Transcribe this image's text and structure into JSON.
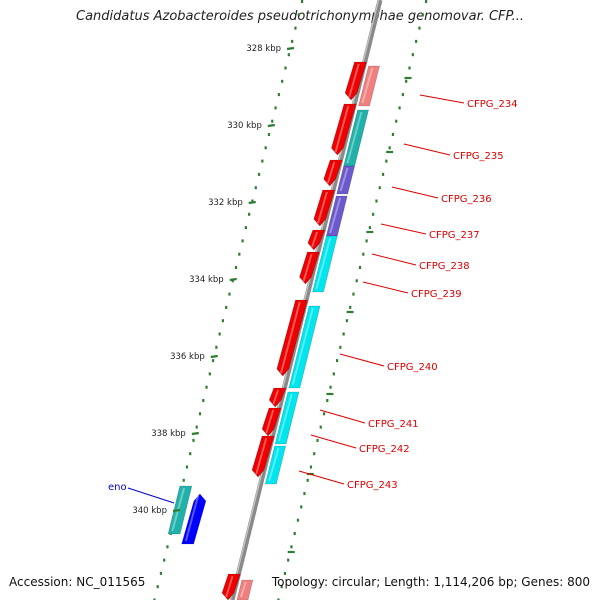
{
  "title": "Candidatus Azobacteroides pseudotrichonymphae genomovar. CFP...",
  "footer": {
    "accession": "Accession: NC_011565",
    "summary": "Topology: circular; Length: 1,114,206 bp; Genes: 800"
  },
  "colors": {
    "backbone": "#8a8a8a",
    "tick": "#2e7d32",
    "label": "#dd0000",
    "eno_label": "#0000cc",
    "kbp_label": "#222222",
    "red": "#ee0000",
    "pink": "#f08080",
    "cyan": "#00e5ee",
    "teal": "#20b2aa",
    "slate": "#6a5acd",
    "blue": "#0000ff"
  },
  "kbp_marks": [
    {
      "label": "328 kbp",
      "kbp": 328
    },
    {
      "label": "330 kbp",
      "kbp": 330
    },
    {
      "label": "332 kbp",
      "kbp": 332
    },
    {
      "label": "334 kbp",
      "kbp": 334
    },
    {
      "label": "336 kbp",
      "kbp": 336
    },
    {
      "label": "338 kbp",
      "kbp": 338
    },
    {
      "label": "340 kbp",
      "kbp": 340
    }
  ],
  "gene_labels": [
    {
      "name": "CFPG_234",
      "color": "label"
    },
    {
      "name": "CFPG_235",
      "color": "label"
    },
    {
      "name": "CFPG_236",
      "color": "label"
    },
    {
      "name": "CFPG_237",
      "color": "label"
    },
    {
      "name": "CFPG_238",
      "color": "label"
    },
    {
      "name": "CFPG_239",
      "color": "label"
    },
    {
      "name": "CFPG_240",
      "color": "label"
    },
    {
      "name": "CFPG_241",
      "color": "label"
    },
    {
      "name": "CFPG_242",
      "color": "label"
    },
    {
      "name": "CFPG_243",
      "color": "label"
    },
    {
      "name": "eno",
      "color": "eno_label"
    }
  ]
}
